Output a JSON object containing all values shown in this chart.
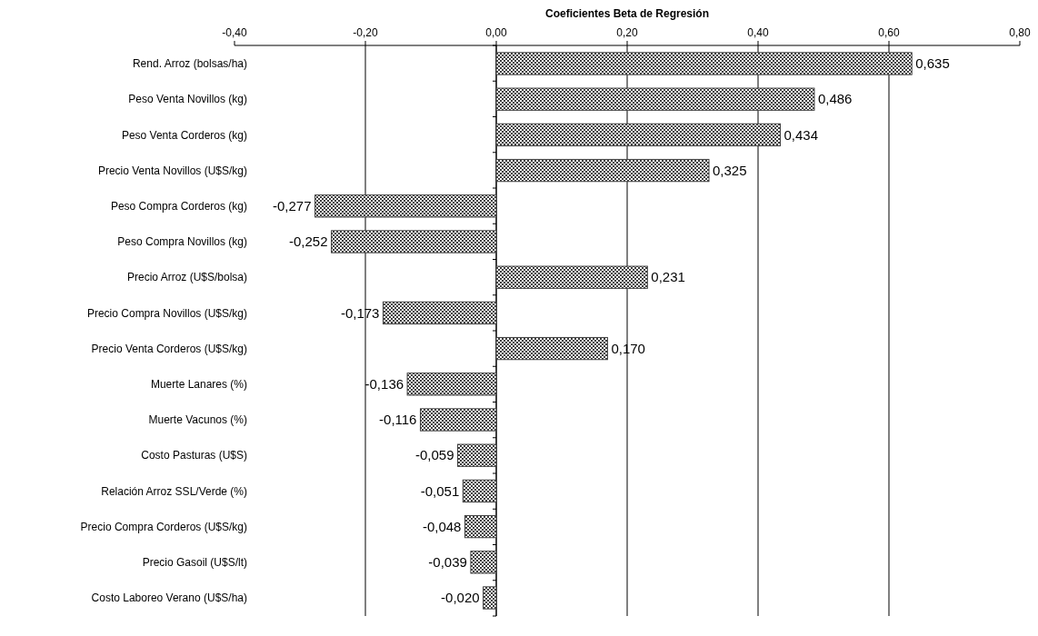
{
  "chart_data": {
    "type": "bar",
    "orientation": "horizontal",
    "xlabel": "Coeficientes Beta de Regresión",
    "categories": [
      "Rend. Arroz (bolsas/ha)",
      "Peso Venta Novillos (kg)",
      "Peso Venta Corderos (kg)",
      "Precio Venta Novillos (U$S/kg)",
      "Peso Compra Corderos (kg)",
      "Peso Compra Novillos (kg)",
      "Precio Arroz (U$S/bolsa)",
      "Precio Compra Novillos (U$S/kg)",
      "Precio Venta Corderos (U$S/kg)",
      "Muerte Lanares (%)",
      "Muerte Vacunos (%)",
      "Costo Pasturas (U$S)",
      "Relación Arroz SSL/Verde (%)",
      "Precio Compra Corderos (U$S/kg)",
      "Precio Gasoil (U$S/lt)",
      "Costo Laboreo Verano (U$S/ha)"
    ],
    "values": [
      0.635,
      0.486,
      0.434,
      0.325,
      -0.277,
      -0.252,
      0.231,
      -0.173,
      0.17,
      -0.136,
      -0.116,
      -0.059,
      -0.051,
      -0.048,
      -0.039,
      -0.02
    ],
    "value_labels": [
      "0,635",
      "0,486",
      "0,434",
      "0,325",
      "-0,277",
      "-0,252",
      "0,231",
      "-0,173",
      "0,170",
      "-0,136",
      "-0,116",
      "-0,059",
      "-0,051",
      "-0,048",
      "-0,039",
      "-0,020"
    ],
    "color": "#404040",
    "xlim": [
      -0.4,
      0.8
    ],
    "xticks": [
      {
        "value": -0.4,
        "label": "-0,40"
      },
      {
        "value": -0.2,
        "label": "-0,20"
      },
      {
        "value": 0,
        "label": "0,00"
      },
      {
        "value": 0.2,
        "label": "0,20"
      },
      {
        "value": 0.4,
        "label": "0,40"
      },
      {
        "value": 0.6,
        "label": "0,60"
      },
      {
        "value": 0.8,
        "label": "0,80"
      }
    ],
    "grid": "x"
  }
}
